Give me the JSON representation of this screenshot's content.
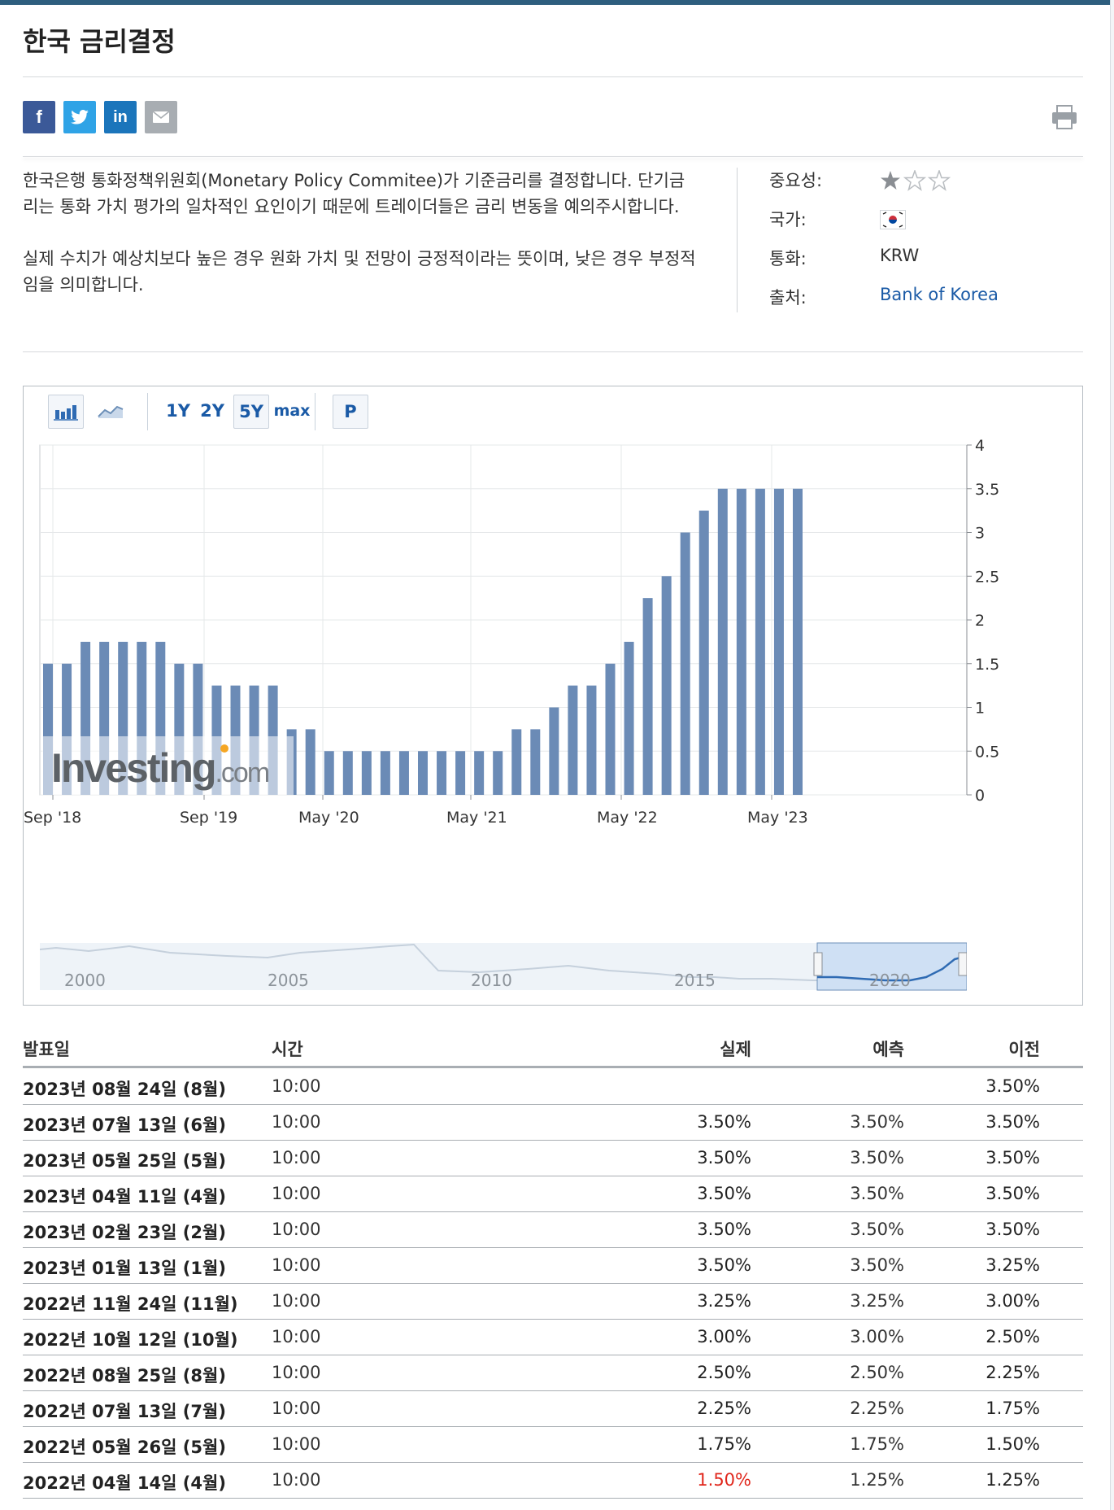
{
  "page": {
    "title": "한국 금리결정"
  },
  "share": {
    "facebook": "f",
    "twitter": "twitter-icon",
    "linkedin": "in",
    "email": "email-icon",
    "print": "print-icon"
  },
  "description": {
    "p1": "한국은행 통화정책위원회(Monetary Policy Commitee)가 기준금리를 결정합니다. 단기금리는 통화 가치 평가의 일차적인 요인이기 때문에 트레이더들은 금리 변동을 예의주시합니다.",
    "p2": "실제 수치가 예상치보다 높은 경우 원화 가치 및 전망이 긍정적이라는 뜻이며, 낮은 경우 부정적임을 의미합니다."
  },
  "meta": {
    "importance_label": "중요성:",
    "importance_stars": 1,
    "importance_max": 3,
    "country_label": "국가:",
    "country_flag": "south-korea-flag",
    "currency_label": "통화:",
    "currency_value": "KRW",
    "source_label": "출처:",
    "source_value": "Bank of Korea"
  },
  "chart_toolbar": {
    "bar_icon": "bar-chart-icon",
    "line_icon": "line-chart-icon",
    "ranges": [
      "1Y",
      "2Y",
      "5Y",
      "max"
    ],
    "selected_range": "5Y",
    "p_button": "P"
  },
  "chart_data": {
    "type": "bar",
    "ylim": [
      0,
      4
    ],
    "yticks": [
      "0",
      "0.5",
      "1",
      "1.5",
      "2",
      "2.5",
      "3",
      "3.5",
      "4"
    ],
    "xtick_labels": [
      "Sep '18",
      "Sep '19",
      "May '20",
      "May '21",
      "May '22",
      "May '23"
    ],
    "values": [
      1.5,
      1.5,
      1.75,
      1.75,
      1.75,
      1.75,
      1.75,
      1.5,
      1.5,
      1.25,
      1.25,
      1.25,
      1.25,
      0.75,
      0.75,
      0.5,
      0.5,
      0.5,
      0.5,
      0.5,
      0.5,
      0.5,
      0.5,
      0.5,
      0.5,
      0.75,
      0.75,
      1.0,
      1.25,
      1.25,
      1.5,
      1.75,
      2.25,
      2.5,
      3.0,
      3.25,
      3.5,
      3.5,
      3.5,
      3.5,
      3.5
    ],
    "bar_color": "#6b8bb6",
    "watermark": "Investing.com",
    "grid": true
  },
  "navigator": {
    "year_labels": [
      "2000",
      "2005",
      "2010",
      "2015",
      "2020"
    ]
  },
  "table": {
    "headers": {
      "date": "발표일",
      "time": "시간",
      "actual": "실제",
      "forecast": "예측",
      "previous": "이전"
    },
    "rows": [
      {
        "date": "2023년 08월 24일 (8월)",
        "time": "10:00",
        "actual": "",
        "forecast": "",
        "previous": "3.50%"
      },
      {
        "date": "2023년 07월 13일 (6월)",
        "time": "10:00",
        "actual": "3.50%",
        "forecast": "3.50%",
        "previous": "3.50%"
      },
      {
        "date": "2023년 05월 25일 (5월)",
        "time": "10:00",
        "actual": "3.50%",
        "forecast": "3.50%",
        "previous": "3.50%"
      },
      {
        "date": "2023년 04월 11일 (4월)",
        "time": "10:00",
        "actual": "3.50%",
        "forecast": "3.50%",
        "previous": "3.50%"
      },
      {
        "date": "2023년 02월 23일 (2월)",
        "time": "10:00",
        "actual": "3.50%",
        "forecast": "3.50%",
        "previous": "3.50%"
      },
      {
        "date": "2023년 01월 13일 (1월)",
        "time": "10:00",
        "actual": "3.50%",
        "forecast": "3.50%",
        "previous": "3.25%"
      },
      {
        "date": "2022년 11월 24일 (11월)",
        "time": "10:00",
        "actual": "3.25%",
        "forecast": "3.25%",
        "previous": "3.00%"
      },
      {
        "date": "2022년 10월 12일 (10월)",
        "time": "10:00",
        "actual": "3.00%",
        "forecast": "3.00%",
        "previous": "2.50%"
      },
      {
        "date": "2022년 08월 25일 (8월)",
        "time": "10:00",
        "actual": "2.50%",
        "forecast": "2.50%",
        "previous": "2.25%"
      },
      {
        "date": "2022년 07월 13일 (7월)",
        "time": "10:00",
        "actual": "2.25%",
        "forecast": "2.25%",
        "previous": "1.75%"
      },
      {
        "date": "2022년 05월 26일 (5월)",
        "time": "10:00",
        "actual": "1.75%",
        "forecast": "1.75%",
        "previous": "1.50%"
      },
      {
        "date": "2022년 04월 14일 (4월)",
        "time": "10:00",
        "actual": "1.50%",
        "forecast": "1.25%",
        "previous": "1.25%",
        "actual_color": "#e0261b"
      }
    ]
  }
}
